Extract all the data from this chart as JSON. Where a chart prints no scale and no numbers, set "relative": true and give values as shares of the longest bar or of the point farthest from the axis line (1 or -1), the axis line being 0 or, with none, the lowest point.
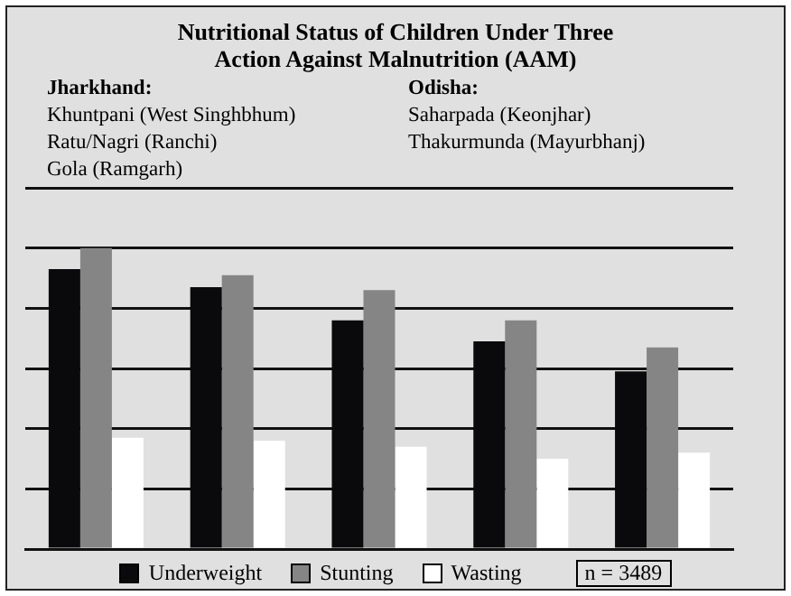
{
  "chart_data": {
    "type": "bar",
    "title": "Nutritional Status of Children Under Three",
    "subtitle": "Action Against Malnutrition (AAM)",
    "annotations": [
      "Jharkhand:\nKhuntpani (West Singhbhum)\nRatu/Nagri (Ranchi)\nGola (Ramgarh)",
      "Odisha:\nSaharpada (Keonjhar)\nThakurmunda (Mayurbhanj)",
      "n = 3489"
    ],
    "categories": [
      null,
      null,
      null,
      null,
      null
    ],
    "relative": true,
    "grid": "y",
    "legend": "bottom",
    "series": [
      {
        "name": "Underweight",
        "color": "#0a0a0c",
        "values": [
          0.93,
          0.87,
          0.76,
          0.69,
          0.59
        ]
      },
      {
        "name": "Stunting",
        "color": "#858585",
        "values": [
          1,
          0.91,
          0.86,
          0.76,
          0.67
        ]
      },
      {
        "name": "Wasting",
        "color": "#ffffff",
        "values": [
          0.37,
          0.36,
          0.34,
          0.3,
          0.32
        ]
      }
    ]
  }
}
